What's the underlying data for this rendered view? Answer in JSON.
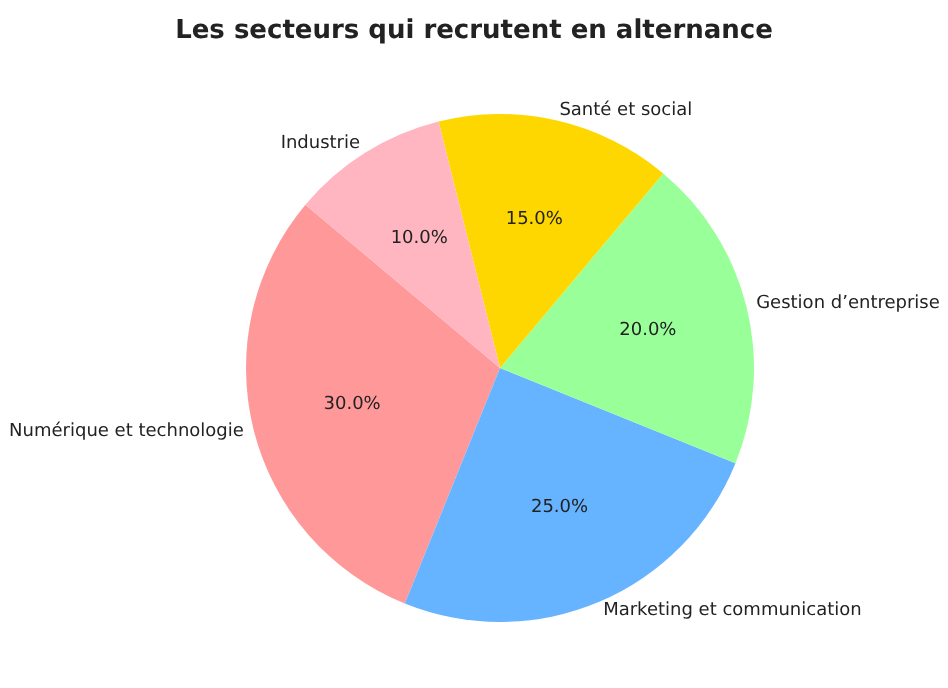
{
  "chart_data": {
    "type": "pie",
    "title": "Les secteurs qui recrutent en alternance",
    "categories": [
      "Numérique et technologie",
      "Marketing et communication",
      "Gestion d’entreprise",
      "Santé et social",
      "Industrie"
    ],
    "values": [
      30,
      25,
      20,
      15,
      10
    ],
    "colors": [
      "#ff9999",
      "#66b3ff",
      "#99ff99",
      "#ffd700",
      "#ffb6c1"
    ],
    "value_labels": [
      "30.0%",
      "25.0%",
      "20.0%",
      "15.0%",
      "10.0%"
    ]
  }
}
